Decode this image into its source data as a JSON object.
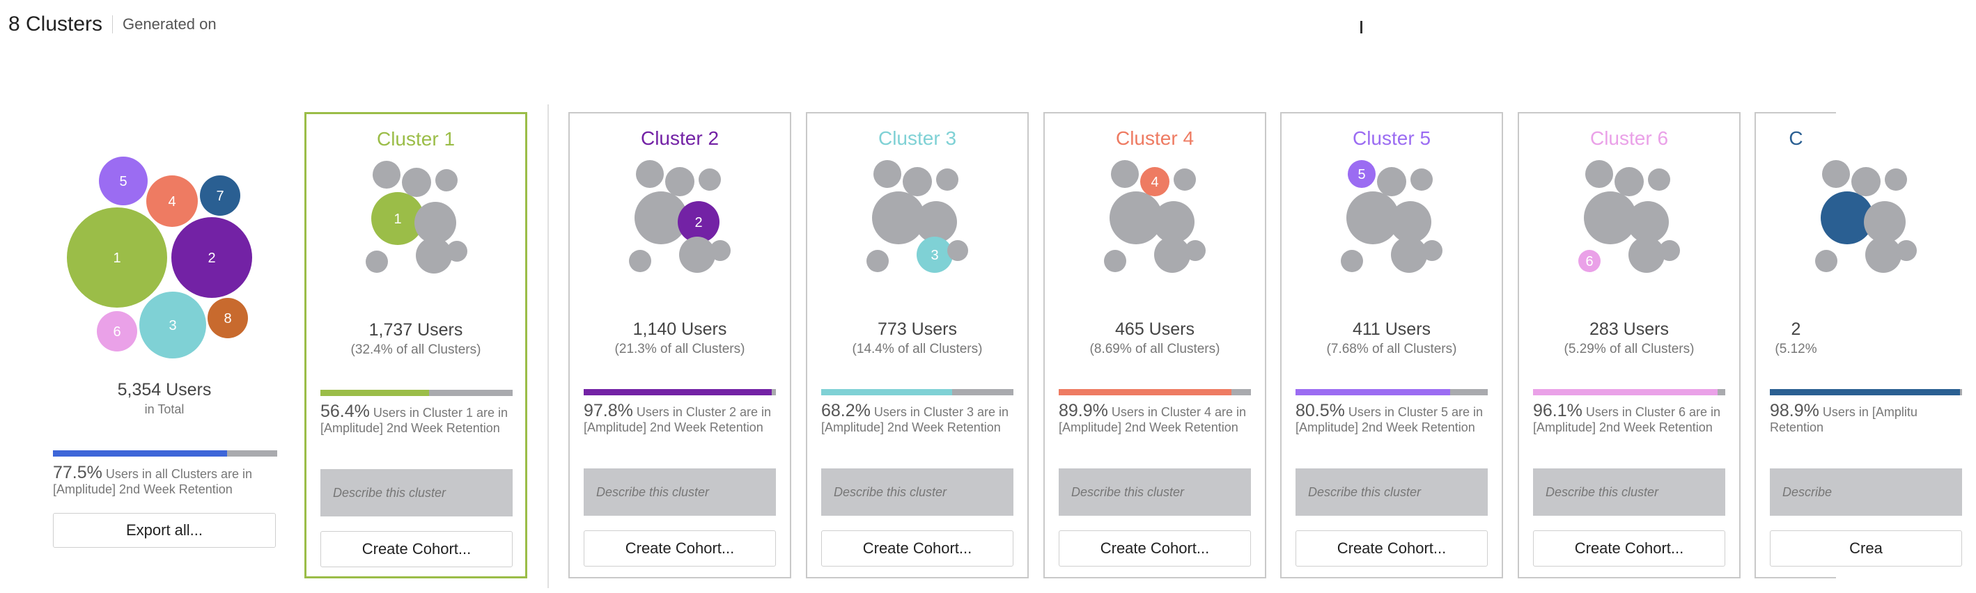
{
  "header": {
    "title": "8 Clusters",
    "subtitle": "Generated on"
  },
  "colors": {
    "c1": "#9bbd48",
    "c2": "#7322a5",
    "c3": "#7fd1d5",
    "c4": "#ee7b62",
    "c5": "#9b6cf2",
    "c6": "#eaa1e8",
    "c7": "#2a5f92",
    "c8": "#c86a2e",
    "gray": "#a9aaae",
    "overall_bar": "#3d66d8"
  },
  "summary": {
    "total_users": "5,354 Users",
    "total_sub": "in Total",
    "retention_pct": "77.5%",
    "retention_text": "Users in all Clusters are in [Amplitude] 2nd Week Retention",
    "retention_fraction": 0.775,
    "export_label": "Export all...",
    "bubble_labels": [
      "1",
      "2",
      "3",
      "4",
      "5",
      "6",
      "7",
      "8"
    ]
  },
  "clusters": [
    {
      "title": "Cluster 1",
      "users": "1,737 Users",
      "share": "(32.4% of all Clusters)",
      "retention_pct": "56.4%",
      "retention_text": "Users in Cluster 1 are in [Amplitude] 2nd Week Retention",
      "retention_fraction": 0.564,
      "color": "#9bbd48",
      "bubble_label": "1",
      "description_placeholder": "Describe this cluster",
      "cohort_label": "Create Cohort..."
    },
    {
      "title": "Cluster 2",
      "users": "1,140 Users",
      "share": "(21.3% of all Clusters)",
      "retention_pct": "97.8%",
      "retention_text": "Users in Cluster 2 are in [Amplitude] 2nd Week Retention",
      "retention_fraction": 0.978,
      "color": "#7322a5",
      "bubble_label": "2",
      "description_placeholder": "Describe this cluster",
      "cohort_label": "Create Cohort..."
    },
    {
      "title": "Cluster 3",
      "users": "773 Users",
      "share": "(14.4% of all Clusters)",
      "retention_pct": "68.2%",
      "retention_text": "Users in Cluster 3 are in [Amplitude] 2nd Week Retention",
      "retention_fraction": 0.682,
      "color": "#7fd1d5",
      "bubble_label": "3",
      "description_placeholder": "Describe this cluster",
      "cohort_label": "Create Cohort..."
    },
    {
      "title": "Cluster 4",
      "users": "465 Users",
      "share": "(8.69% of all Clusters)",
      "retention_pct": "89.9%",
      "retention_text": "Users in Cluster 4 are in [Amplitude] 2nd Week Retention",
      "retention_fraction": 0.899,
      "color": "#ee7b62",
      "bubble_label": "4",
      "description_placeholder": "Describe this cluster",
      "cohort_label": "Create Cohort..."
    },
    {
      "title": "Cluster 5",
      "users": "411 Users",
      "share": "(7.68% of all Clusters)",
      "retention_pct": "80.5%",
      "retention_text": "Users in Cluster 5 are in [Amplitude] 2nd Week Retention",
      "retention_fraction": 0.805,
      "color": "#9b6cf2",
      "bubble_label": "5",
      "description_placeholder": "Describe this cluster",
      "cohort_label": "Create Cohort..."
    },
    {
      "title": "Cluster 6",
      "users": "283 Users",
      "share": "(5.29% of all Clusters)",
      "retention_pct": "96.1%",
      "retention_text": "Users in Cluster 6 are in [Amplitude] 2nd Week Retention",
      "retention_fraction": 0.961,
      "color": "#eaa1e8",
      "bubble_label": "6",
      "description_placeholder": "Describe this cluster",
      "cohort_label": "Create Cohort..."
    },
    {
      "title": "C",
      "users": "2",
      "share": "(5.12%",
      "retention_pct": "98.9%",
      "retention_text": "Users in [Amplitu Retention",
      "retention_fraction": 0.989,
      "color": "#2a5f92",
      "bubble_label": "",
      "description_placeholder": "Describe",
      "cohort_label": "Crea"
    }
  ]
}
